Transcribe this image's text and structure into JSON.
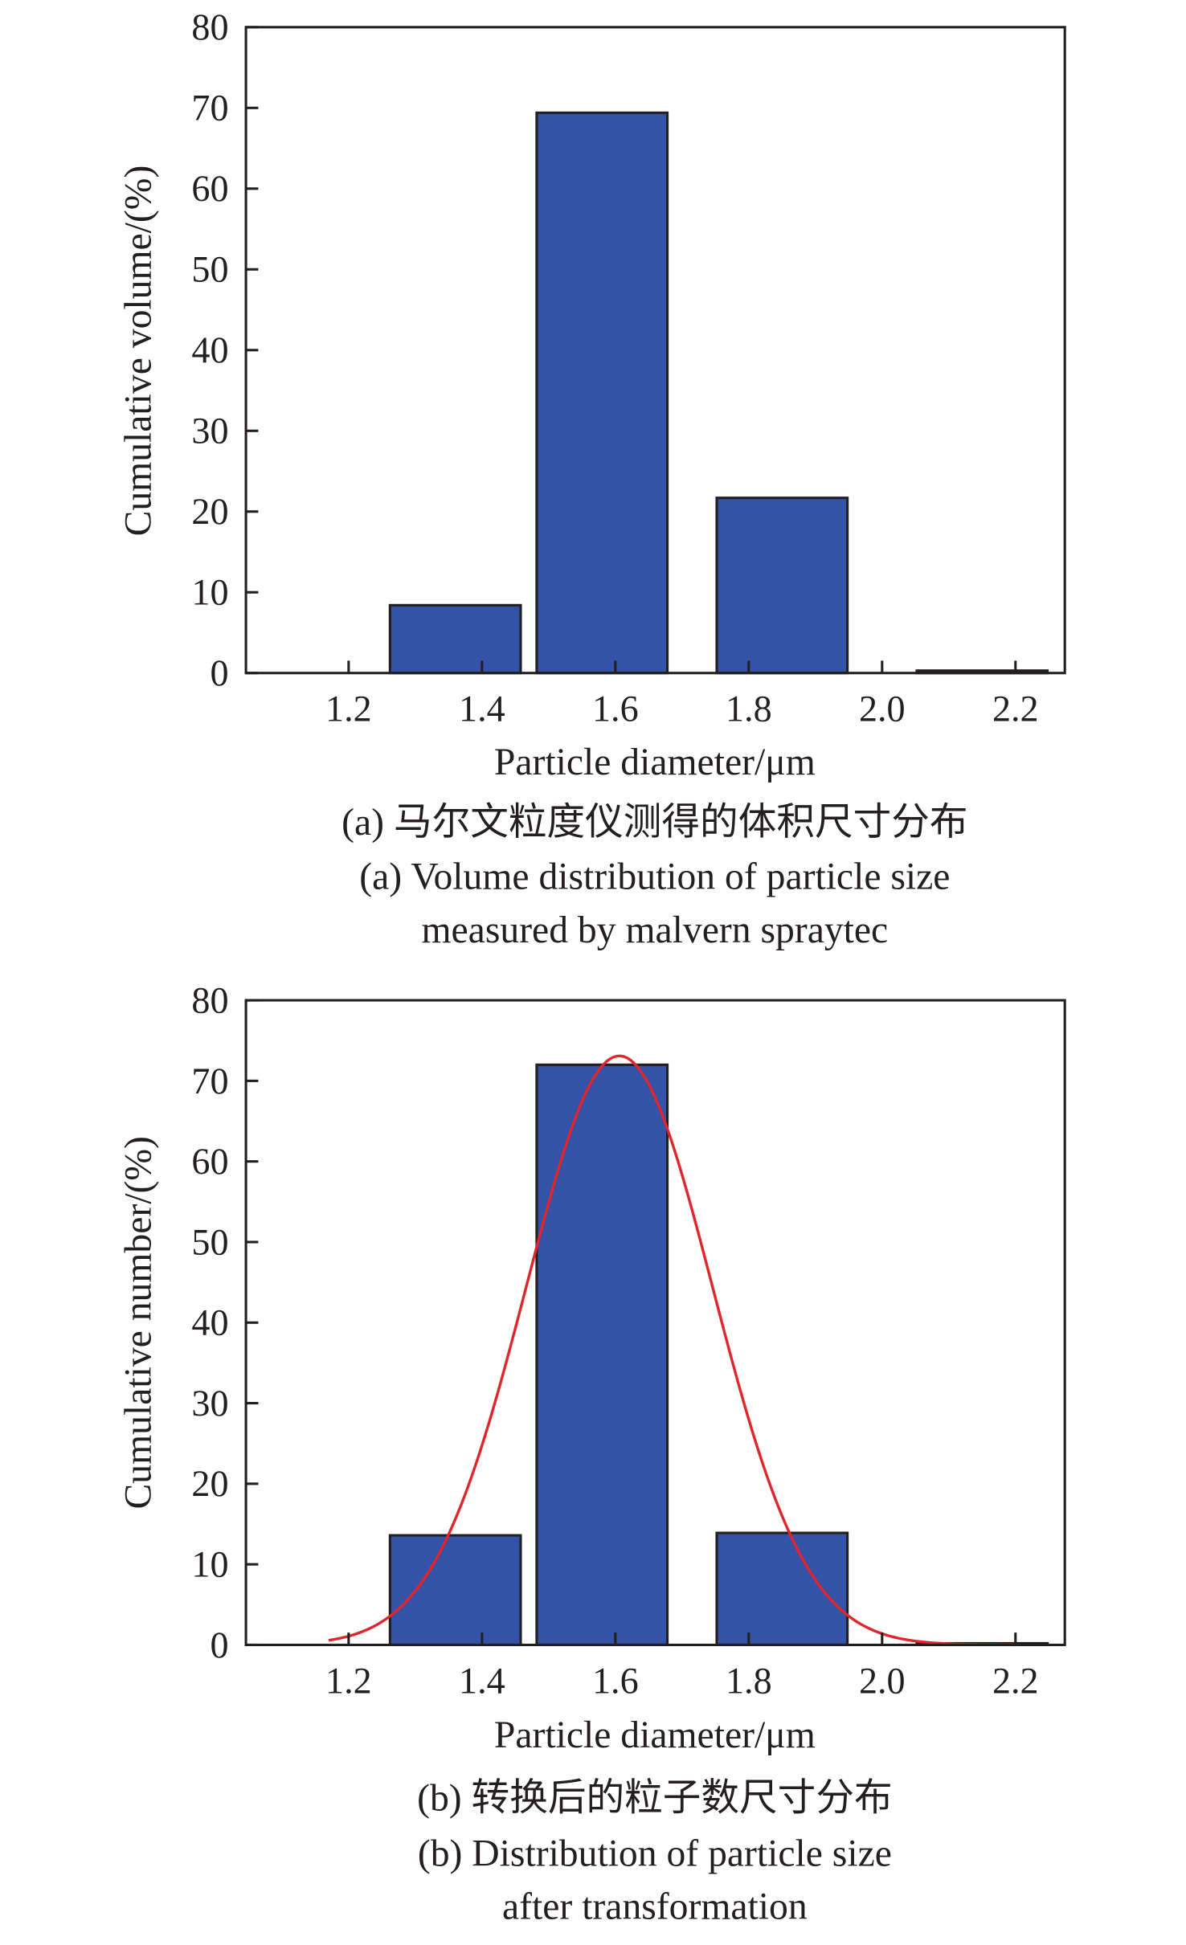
{
  "colors": {
    "bar": "#3452a8",
    "bar_edge": "#231f20",
    "curve": "#e0252b",
    "axis": "#231f20"
  },
  "chart_data": [
    {
      "type": "bar",
      "id": "a",
      "title": "",
      "xlabel": "Particle diameter/μm",
      "ylabel": "Cumulative volume/(%)",
      "xlim": [
        1.046,
        2.274
      ],
      "ylim": [
        0,
        80
      ],
      "xticks": [
        "1.2",
        "1.4",
        "1.6",
        "1.8",
        "2.0",
        "2.2"
      ],
      "yticks": [
        "0",
        "10",
        "20",
        "30",
        "40",
        "50",
        "60",
        "70",
        "80"
      ],
      "bar_width": 0.196,
      "bars": [
        {
          "x": 1.36,
          "value": 8.4
        },
        {
          "x": 1.58,
          "value": 69.4
        },
        {
          "x": 1.85,
          "value": 21.7
        },
        {
          "x": 2.15,
          "value": 0.3
        }
      ],
      "caption": [
        "(a) 马尔文粒度仪测得的体积尺寸分布",
        "(a) Volume distribution of particle size",
        "measured by malvern spraytec"
      ]
    },
    {
      "type": "bar",
      "id": "b",
      "title": "",
      "xlabel": "Particle diameter/μm",
      "ylabel": "Cumulative number/(%)",
      "xlim": [
        1.046,
        2.274
      ],
      "ylim": [
        0,
        80
      ],
      "xticks": [
        "1.2",
        "1.4",
        "1.6",
        "1.8",
        "2.0",
        "2.2"
      ],
      "yticks": [
        "0",
        "10",
        "20",
        "30",
        "40",
        "50",
        "60",
        "70",
        "80"
      ],
      "bar_width": 0.196,
      "bars": [
        {
          "x": 1.36,
          "value": 13.6
        },
        {
          "x": 1.58,
          "value": 72.0
        },
        {
          "x": 1.85,
          "value": 13.9
        },
        {
          "x": 2.15,
          "value": 0.2
        }
      ],
      "fit_curve": {
        "type": "gaussian",
        "amplitude": 73.1,
        "mean": 1.606,
        "sigma": 0.14,
        "x_range": [
          1.17,
          2.2
        ]
      },
      "caption": [
        "(b) 转换后的粒子数尺寸分布",
        "(b) Distribution of particle size",
        "after transformation"
      ]
    }
  ]
}
